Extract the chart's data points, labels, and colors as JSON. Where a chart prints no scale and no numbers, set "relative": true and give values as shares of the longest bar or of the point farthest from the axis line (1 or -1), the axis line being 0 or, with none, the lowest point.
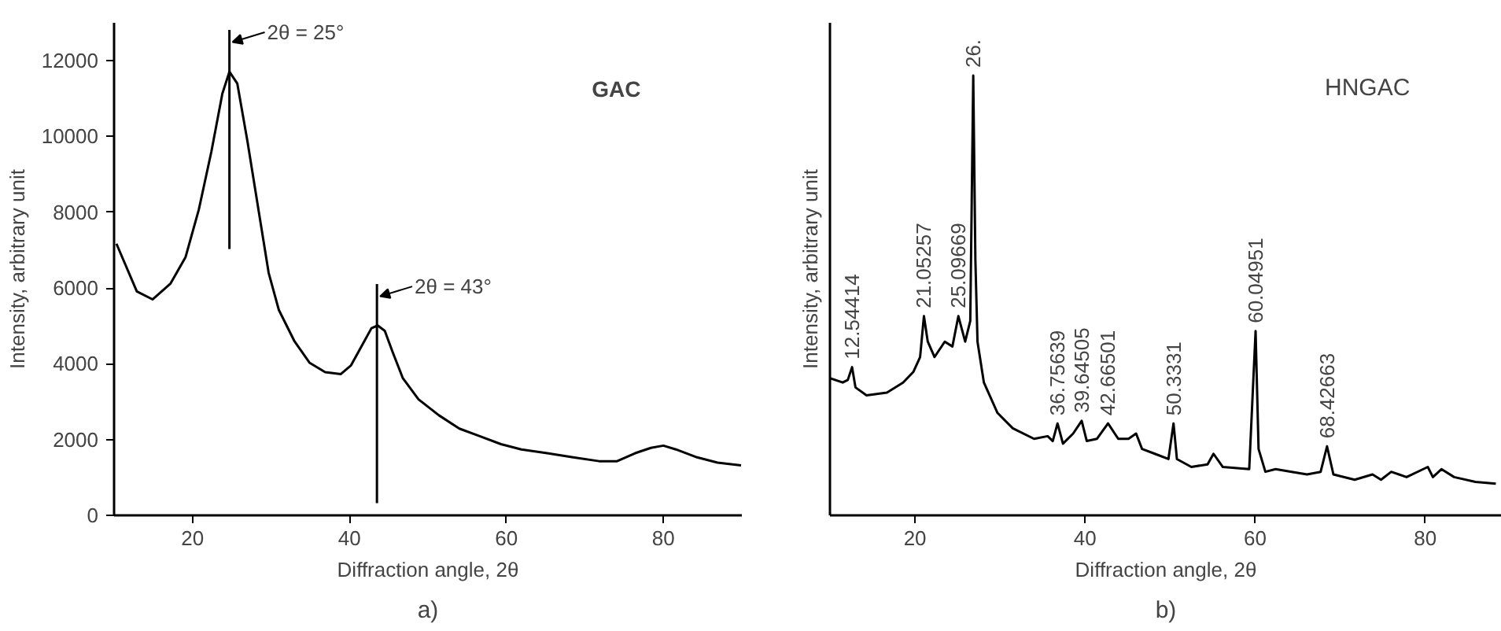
{
  "chart_data": [
    {
      "type": "line",
      "title": "GAC",
      "xlabel": "Diffraction angle, 2θ",
      "ylabel": "Intensity, arbitrary unit",
      "x": [
        10.3,
        12.9,
        14.9,
        17.2,
        19.1,
        20.8,
        22.4,
        23.8,
        24.7,
        25.7,
        27.0,
        28.4,
        29.7,
        31.0,
        33.0,
        34.9,
        36.9,
        38.9,
        40.2,
        41.5,
        42.8,
        43.6,
        44.5,
        45.5,
        46.8,
        48.8,
        51.4,
        54.0,
        56.6,
        59.3,
        61.9,
        65.2,
        68.5,
        71.8,
        74.1,
        76.4,
        78.4,
        80.0,
        81.6,
        84.3,
        86.9,
        89.9
      ],
      "series": [
        {
          "color": "#000000",
          "values": [
            7170,
            5910,
            5700,
            6120,
            6810,
            8070,
            9600,
            11130,
            11710,
            11400,
            9870,
            8070,
            6400,
            5420,
            4590,
            4030,
            3780,
            3730,
            3960,
            4450,
            4940,
            5010,
            4870,
            4310,
            3620,
            3060,
            2640,
            2290,
            2090,
            1880,
            1740,
            1640,
            1530,
            1430,
            1430,
            1640,
            1780,
            1840,
            1740,
            1530,
            1390,
            1320
          ]
        }
      ],
      "xlim": [
        10,
        90
      ],
      "xticks": [
        20,
        40,
        60,
        80
      ],
      "ylim": [
        0,
        13000
      ],
      "yticks": [
        0,
        2000,
        4000,
        6000,
        8000,
        10000,
        12000
      ],
      "ref_lines": [
        {
          "axis": "x",
          "value": 24.7,
          "label": "2θ = 25°"
        },
        {
          "axis": "x",
          "value": 43.5,
          "label": "2θ = 43°"
        }
      ],
      "annotations": [
        "a)"
      ]
    },
    {
      "type": "line",
      "title": "HNGAC",
      "xlabel": "Diffraction angle, 2θ",
      "ylabel": "Intensity, arbitrary unit",
      "relative": true,
      "x": [
        10.0,
        11.5,
        12.1,
        12.6,
        13.0,
        14.3,
        16.7,
        18.6,
        19.8,
        20.6,
        21.05,
        21.5,
        22.3,
        23.5,
        24.4,
        25.1,
        25.9,
        26.5,
        26.85,
        27.1,
        27.35,
        28.1,
        29.7,
        31.5,
        34.0,
        35.6,
        36.2,
        36.76,
        37.4,
        38.6,
        39.6,
        40.2,
        41.4,
        42.7,
        43.9,
        45.1,
        46.0,
        46.7,
        48.2,
        49.8,
        50.4,
        50.8,
        52.5,
        54.4,
        55.1,
        56.2,
        59.3,
        60.05,
        60.4,
        61.2,
        62.4,
        64.3,
        66.1,
        67.7,
        68.45,
        69.2,
        71.7,
        73.8,
        74.8,
        76.0,
        77.8,
        80.3,
        80.9,
        81.9,
        83.4,
        85.9,
        88.3
      ],
      "series": [
        {
          "color": "#000000",
          "values": [
            0.312,
            0.302,
            0.308,
            0.337,
            0.291,
            0.273,
            0.279,
            0.302,
            0.326,
            0.36,
            0.453,
            0.395,
            0.36,
            0.395,
            0.384,
            0.453,
            0.395,
            0.442,
            1.0,
            0.581,
            0.395,
            0.302,
            0.233,
            0.198,
            0.174,
            0.18,
            0.169,
            0.209,
            0.163,
            0.186,
            0.215,
            0.169,
            0.174,
            0.209,
            0.174,
            0.174,
            0.186,
            0.151,
            0.14,
            0.128,
            0.209,
            0.128,
            0.11,
            0.116,
            0.14,
            0.11,
            0.105,
            0.419,
            0.151,
            0.099,
            0.105,
            0.099,
            0.093,
            0.099,
            0.157,
            0.093,
            0.081,
            0.093,
            0.081,
            0.099,
            0.087,
            0.11,
            0.087,
            0.105,
            0.087,
            0.076,
            0.072
          ]
        }
      ],
      "xlim": [
        10,
        89
      ],
      "xticks": [
        20,
        40,
        60,
        80
      ],
      "annotations": [
        {
          "text": "12.54414",
          "x": 12.6,
          "y": 0.337
        },
        {
          "text": "21.05257",
          "x": 21.05,
          "y": 0.453
        },
        {
          "text": "25.09669",
          "x": 25.1,
          "y": 0.453
        },
        {
          "text": "26.",
          "x": 26.85,
          "y": 1.0
        },
        {
          "text": "36.75639",
          "x": 36.76,
          "y": 0.209
        },
        {
          "text": "39.64505",
          "x": 39.6,
          "y": 0.215
        },
        {
          "text": "42.66501",
          "x": 42.7,
          "y": 0.209
        },
        {
          "text": "50.3331",
          "x": 50.4,
          "y": 0.209
        },
        {
          "text": "60.04951",
          "x": 60.05,
          "y": 0.419
        },
        {
          "text": "68.42663",
          "x": 68.45,
          "y": 0.157
        },
        "b)"
      ]
    }
  ]
}
